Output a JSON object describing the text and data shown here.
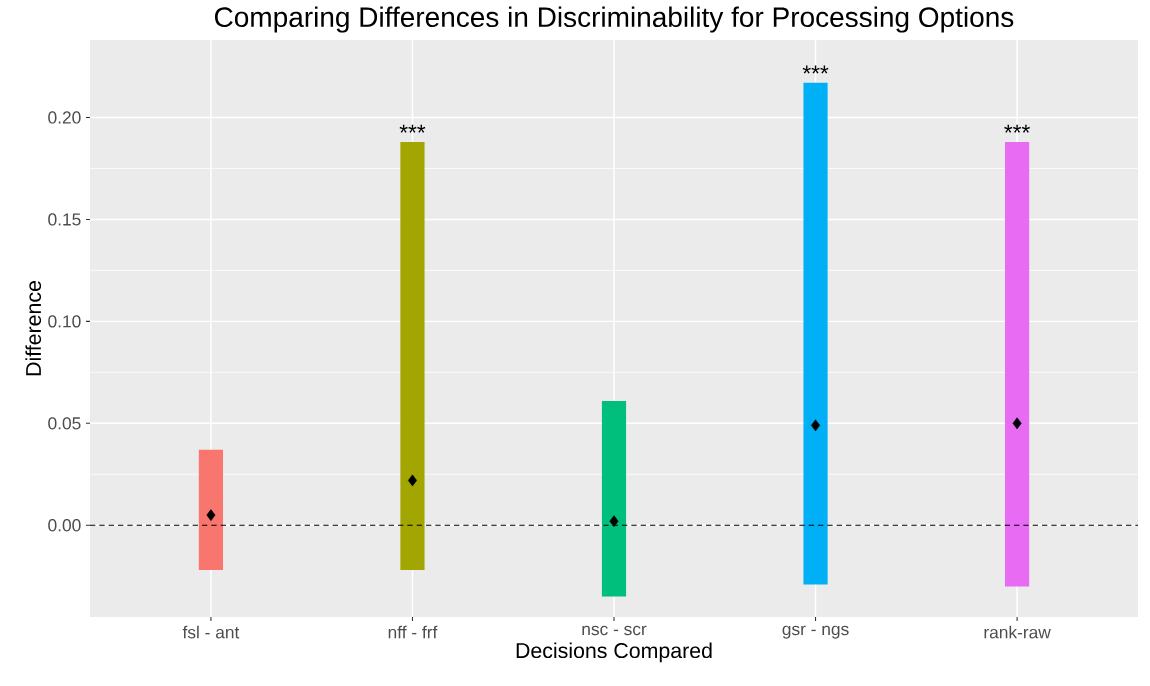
{
  "chart_data": {
    "type": "bar",
    "title": "Comparing Differences in Discriminability for Processing Options",
    "xlabel": "Decisions Compared",
    "ylabel": "Difference",
    "categories": [
      "fsl - ant",
      "nff - frf",
      "nsc - scr",
      "gsr - ngs",
      "rank-raw"
    ],
    "series": [
      {
        "base": [
          -0.022,
          -0.022,
          -0.035,
          -0.029,
          -0.03
        ],
        "values": [
          0.059,
          0.21,
          0.096,
          0.246,
          0.218
        ],
        "value_labels": [
          null,
          "***",
          null,
          "***",
          "***"
        ],
        "colors": [
          "#f8766d",
          "#a3a500",
          "#00bf7d",
          "#00b0f6",
          "#e76bf3"
        ]
      },
      {
        "type": "scatter",
        "x": [
          "fsl - ant",
          "nff - frf",
          "nsc - scr",
          "gsr - ngs",
          "rank-raw"
        ],
        "values": [
          0.005,
          0.022,
          0.002,
          0.049,
          0.05
        ],
        "color": "#000000"
      }
    ],
    "marker": "diamond",
    "ylim": [
      -0.045,
      0.238
    ],
    "yticks": [
      {
        "value": 0,
        "label": "0.00"
      },
      {
        "value": 0.05,
        "label": "0.05"
      },
      {
        "value": 0.1,
        "label": "0.10"
      },
      {
        "value": 0.15,
        "label": "0.15"
      },
      {
        "value": 0.2,
        "label": "0.20"
      }
    ],
    "grid": true,
    "ref_lines": [
      {
        "axis": "y",
        "value": 0,
        "color": "#000000",
        "line_style": "dashed"
      }
    ]
  }
}
